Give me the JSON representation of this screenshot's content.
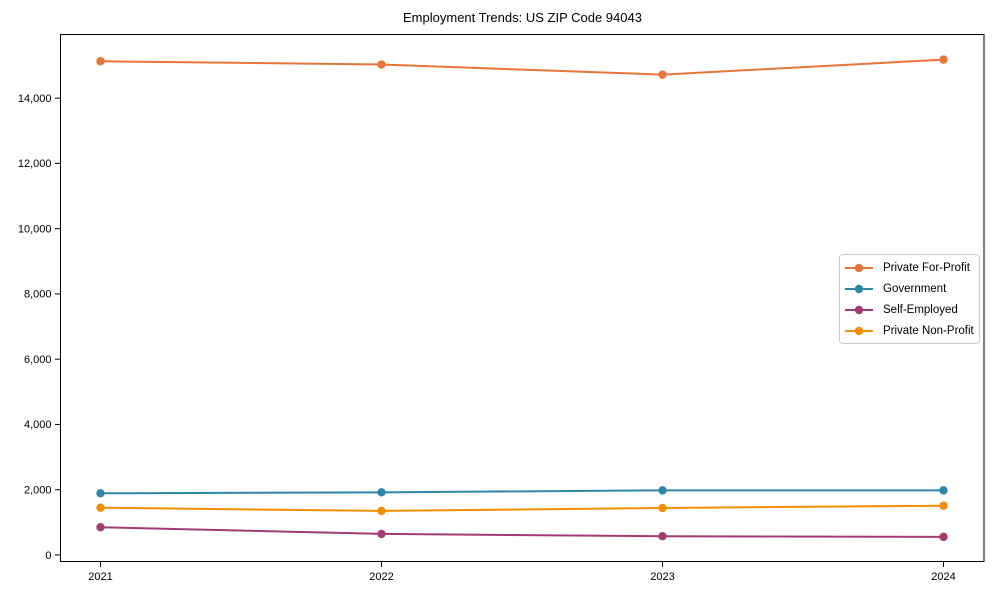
{
  "chart_data": {
    "type": "line",
    "title": "Employment Trends: US ZIP Code 94043",
    "xlabel": "",
    "ylabel": "",
    "categories": [
      "2021",
      "2022",
      "2023",
      "2024"
    ],
    "series": [
      {
        "name": "Private For-Profit",
        "color": "#E8743B",
        "values": [
          15130,
          15030,
          14720,
          15180
        ]
      },
      {
        "name": "Government",
        "color": "#2E86AB",
        "values": [
          1890,
          1920,
          1980,
          1980
        ]
      },
      {
        "name": "Self-Employed",
        "color": "#A23B72",
        "values": [
          850,
          645,
          575,
          555
        ]
      },
      {
        "name": "Private Non-Profit",
        "color": "#F18F01",
        "values": [
          1450,
          1350,
          1440,
          1510
        ]
      }
    ],
    "yticks": [
      0,
      2000,
      4000,
      6000,
      8000,
      10000,
      12000,
      14000
    ],
    "ylim": [
      -200,
      15950
    ],
    "grid": false,
    "marker": "circle",
    "legend_position": "center-right"
  }
}
